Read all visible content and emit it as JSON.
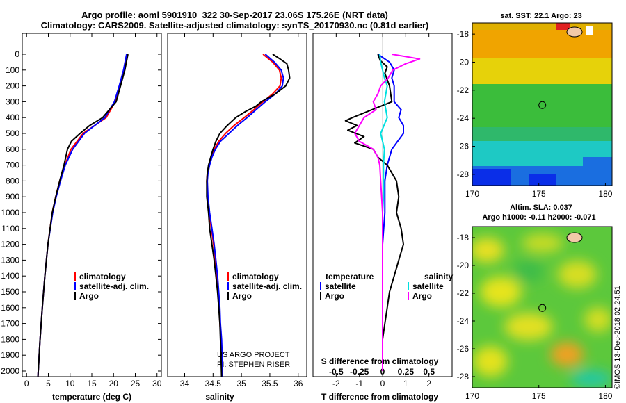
{
  "title_line1": "Argo profile: aoml 5901910_322 30-Sep-2017 23.06S 175.26E (NRT data)",
  "title_line2": "Climatology: CARS2009. Satellite-adjusted climatology: synTS_20170930.nc (0.81d earlier)",
  "stamp": "©IMOS 13-Dec-2018 02:24:51",
  "project_line1": "US ARGO PROJECT",
  "project_line2": "PI: STEPHEN RISER",
  "colors": {
    "climatology": "#ff0000",
    "satellite": "#0000ff",
    "argo": "#000000",
    "satellite_salinity": "#00e0e0",
    "argo_salinity": "#ff00ff"
  },
  "chart_data": [
    {
      "type": "line",
      "xlabel": "temperature (deg C)",
      "xlim": [
        -1,
        31
      ],
      "ylim": [
        2050,
        0
      ],
      "x_ticks": [
        0,
        5,
        10,
        15,
        20,
        25,
        30
      ],
      "y_ticks": [
        0,
        100,
        200,
        300,
        400,
        500,
        600,
        700,
        800,
        900,
        1000,
        1100,
        1200,
        1300,
        1400,
        1500,
        1600,
        1700,
        1800,
        1900,
        2000
      ],
      "y_tick_labels": [
        "0",
        "100",
        "200",
        "300",
        "400",
        "500",
        "600",
        "700",
        "800",
        "900",
        "1000",
        "1100",
        "1200",
        "1300",
        "1400",
        "1500",
        "1600",
        "1700",
        "1800",
        "1900",
        "2000"
      ],
      "legend": [
        "climatology",
        "satellite-adj. clim.",
        "Argo"
      ],
      "series": [
        {
          "name": "climatology",
          "color": "#ff0000",
          "depth": [
            0,
            100,
            200,
            300,
            400,
            500,
            600,
            700,
            800,
            900,
            1000,
            1200,
            1400,
            1600,
            1800,
            2040
          ],
          "values": [
            23.2,
            22.5,
            21.5,
            20.4,
            18.3,
            13.0,
            10.2,
            8.8,
            7.6,
            6.7,
            5.9,
            4.9,
            4.2,
            3.6,
            3.1,
            2.6
          ]
        },
        {
          "name": "satellite-adj. clim.",
          "color": "#0000ff",
          "depth": [
            0,
            100,
            200,
            300,
            400,
            500,
            600,
            700,
            800,
            900,
            1000,
            1200,
            1400,
            1600,
            1800,
            2040
          ],
          "values": [
            23.0,
            22.3,
            21.3,
            20.2,
            18.0,
            13.3,
            10.6,
            8.9,
            7.8,
            6.8,
            6.0,
            4.9,
            4.2,
            3.6,
            3.1,
            2.6
          ]
        },
        {
          "name": "Argo",
          "color": "#000000",
          "depth": [
            0,
            100,
            200,
            300,
            400,
            450,
            500,
            550,
            600,
            700,
            800,
            900,
            1000,
            1200,
            1400,
            1600,
            1800,
            2040
          ],
          "values": [
            23.3,
            22.6,
            21.6,
            20.6,
            17.5,
            14.5,
            12.3,
            10.3,
            9.4,
            8.6,
            7.6,
            6.7,
            5.9,
            4.9,
            4.2,
            3.6,
            3.1,
            2.6
          ]
        }
      ]
    },
    {
      "type": "line",
      "xlabel": "salinity",
      "xlim": [
        33.7,
        36.15
      ],
      "ylim": [
        2050,
        0
      ],
      "x_ticks": [
        34,
        34.5,
        35,
        35.5,
        36
      ],
      "x_tick_labels": [
        "34",
        "34.5",
        "35",
        "35.5",
        "36"
      ],
      "legend": [
        "climatology",
        "satellite-adj. clim.",
        "Argo"
      ],
      "series": [
        {
          "name": "climatology",
          "color": "#ff0000",
          "depth": [
            0,
            50,
            100,
            150,
            200,
            250,
            300,
            350,
            400,
            450,
            500,
            550,
            600,
            650,
            700,
            750,
            800,
            900,
            1000,
            1100,
            1200,
            1300,
            1400,
            1500,
            1600,
            1700,
            1800,
            1900,
            2040
          ],
          "values": [
            35.38,
            35.55,
            35.67,
            35.7,
            35.68,
            35.55,
            35.38,
            35.22,
            35.05,
            34.87,
            34.72,
            34.6,
            34.52,
            34.47,
            34.43,
            34.4,
            34.39,
            34.4,
            34.43,
            34.47,
            34.51,
            34.54,
            34.57,
            34.59,
            34.61,
            34.62,
            34.64,
            34.65,
            34.66
          ]
        },
        {
          "name": "satellite-adj. clim.",
          "color": "#0000ff",
          "depth": [
            0,
            50,
            100,
            150,
            200,
            250,
            300,
            350,
            400,
            450,
            500,
            550,
            600,
            650,
            700,
            750,
            800,
            900,
            1000,
            1100,
            1200,
            1300,
            1400,
            1500,
            1600,
            1700,
            1800,
            1900,
            2040
          ],
          "values": [
            35.42,
            35.58,
            35.7,
            35.74,
            35.72,
            35.6,
            35.42,
            35.26,
            35.1,
            34.93,
            34.78,
            34.63,
            34.54,
            34.48,
            34.44,
            34.41,
            34.4,
            34.41,
            34.44,
            34.48,
            34.52,
            34.55,
            34.58,
            34.6,
            34.62,
            34.63,
            34.65,
            34.66,
            34.66
          ]
        },
        {
          "name": "Argo",
          "color": "#000000",
          "depth": [
            0,
            30,
            60,
            100,
            150,
            200,
            250,
            300,
            330,
            360,
            400,
            450,
            500,
            550,
            600,
            650,
            700,
            750,
            800,
            900,
            1000,
            1100,
            1200,
            1300,
            1400,
            1500,
            1600,
            1700,
            1800,
            1900,
            2040
          ],
          "values": [
            35.55,
            35.68,
            35.8,
            35.83,
            35.85,
            35.78,
            35.6,
            35.35,
            35.25,
            35.08,
            34.9,
            34.75,
            34.62,
            34.55,
            34.5,
            34.46,
            34.42,
            34.4,
            34.39,
            34.39,
            34.42,
            34.44,
            34.48,
            34.52,
            34.55,
            34.58,
            34.6,
            34.62,
            34.63,
            34.64,
            34.65
          ]
        }
      ]
    },
    {
      "type": "line",
      "xlabel": "T difference from climatology",
      "x_ticks": [
        -2,
        -1,
        0,
        1,
        2
      ],
      "x_tick_labels": [
        "-2",
        "-1",
        "0",
        "1",
        "2"
      ],
      "xlim": [
        -3,
        3
      ],
      "top_axis_label": "S difference from climatology",
      "top_ticks": [
        -0.5,
        -0.25,
        0,
        0.25,
        0.5
      ],
      "top_tick_labels": [
        "-0.5",
        "-0.25",
        "0",
        "0.25",
        "0.5"
      ],
      "ylim": [
        2050,
        0
      ],
      "legend_temperature_title": "temperature",
      "legend_salinity_title": "salinity",
      "legend_temperature": [
        "satellite",
        "Argo"
      ],
      "legend_salinity": [
        "satellite",
        "Argo"
      ],
      "series": [
        {
          "name": "satellite",
          "group": "temperature",
          "color": "#0000ff",
          "depth": [
            0,
            50,
            100,
            150,
            200,
            300,
            350,
            400,
            450,
            500,
            600,
            700,
            800,
            900,
            1000,
            1200,
            1400,
            1600,
            1800,
            2000
          ],
          "values": [
            -0.2,
            0.3,
            0.5,
            0.4,
            0.5,
            0.5,
            0.8,
            0.7,
            0.9,
            0.9,
            0.4,
            0.2,
            0.1,
            0.1,
            0.1,
            0.0,
            0.0,
            0.0,
            0.0,
            0.0
          ]
        },
        {
          "name": "Argo",
          "group": "temperature",
          "color": "#000000",
          "depth": [
            0,
            40,
            80,
            120,
            200,
            300,
            400,
            420,
            450,
            480,
            520,
            560,
            600,
            650,
            700,
            800,
            900,
            1000,
            1100,
            1200,
            1300,
            1400,
            1500,
            1600,
            1700,
            1800,
            1900,
            2000
          ],
          "values": [
            -0.2,
            -0.1,
            0.2,
            0.1,
            0.3,
            0.4,
            -1.3,
            -1.6,
            -1.1,
            -1.5,
            -0.8,
            -1.2,
            -0.4,
            -0.2,
            0.2,
            0.6,
            0.7,
            0.6,
            0.8,
            0.9,
            0.7,
            0.5,
            0.3,
            0.2,
            0.1,
            0.0,
            0.0,
            0.0
          ]
        },
        {
          "name": "satellite",
          "group": "salinity",
          "color": "#00e0e0",
          "depth": [
            0,
            50,
            100,
            150,
            200,
            300,
            400,
            500,
            600,
            700,
            800,
            900,
            1000,
            1200,
            1400,
            1600,
            1800,
            2000
          ],
          "values": [
            -0.03,
            -0.02,
            0.0,
            0.02,
            0.05,
            0.02,
            0.05,
            -0.02,
            0.02,
            0.01,
            0.01,
            0.01,
            0.0,
            0.0,
            0.0,
            0.0,
            0.0,
            0.0
          ]
        },
        {
          "name": "Argo",
          "group": "salinity",
          "color": "#ff00ff",
          "depth": [
            0,
            30,
            60,
            100,
            150,
            200,
            250,
            300,
            350,
            400,
            450,
            500,
            550,
            600,
            650,
            700,
            800,
            1000,
            1200,
            1400,
            1600,
            1800,
            2000
          ],
          "values": [
            0.1,
            0.4,
            0.25,
            0.11,
            0.06,
            -0.02,
            -0.05,
            -0.1,
            -0.07,
            -0.2,
            -0.25,
            -0.3,
            -0.25,
            -0.1,
            -0.05,
            -0.03,
            -0.02,
            0.0,
            0.0,
            0.0,
            0.0,
            0.0,
            0.0
          ]
        }
      ]
    },
    {
      "type": "heatmap",
      "title": "sat. SST: 22.1  Argo: 23",
      "xlim": [
        170,
        180.5
      ],
      "ylim": [
        -28.8,
        -17.2
      ],
      "x_ticks": [
        170,
        175,
        180
      ],
      "y_ticks": [
        -18,
        -20,
        -22,
        -24,
        -26,
        -28
      ],
      "y_tick_labels": [
        "-18",
        "-20",
        "-22",
        "-24",
        "-26",
        "-28"
      ],
      "profile_lon": 175.26,
      "profile_lat": -23.06
    },
    {
      "type": "heatmap",
      "title_line1": "Altim. SLA: 0.037",
      "title_line2": "Argo h1000: -0.11 h2000: -0.071",
      "xlim": [
        170,
        180.5
      ],
      "ylim": [
        -28.8,
        -17.2
      ],
      "x_ticks": [
        170,
        175,
        180
      ],
      "y_ticks": [
        -18,
        -20,
        -22,
        -24,
        -26,
        -28
      ],
      "y_tick_labels": [
        "-18",
        "-20",
        "-22",
        "-24",
        "-26",
        "-28"
      ],
      "profile_lon": 175.26,
      "profile_lat": -23.06
    }
  ]
}
